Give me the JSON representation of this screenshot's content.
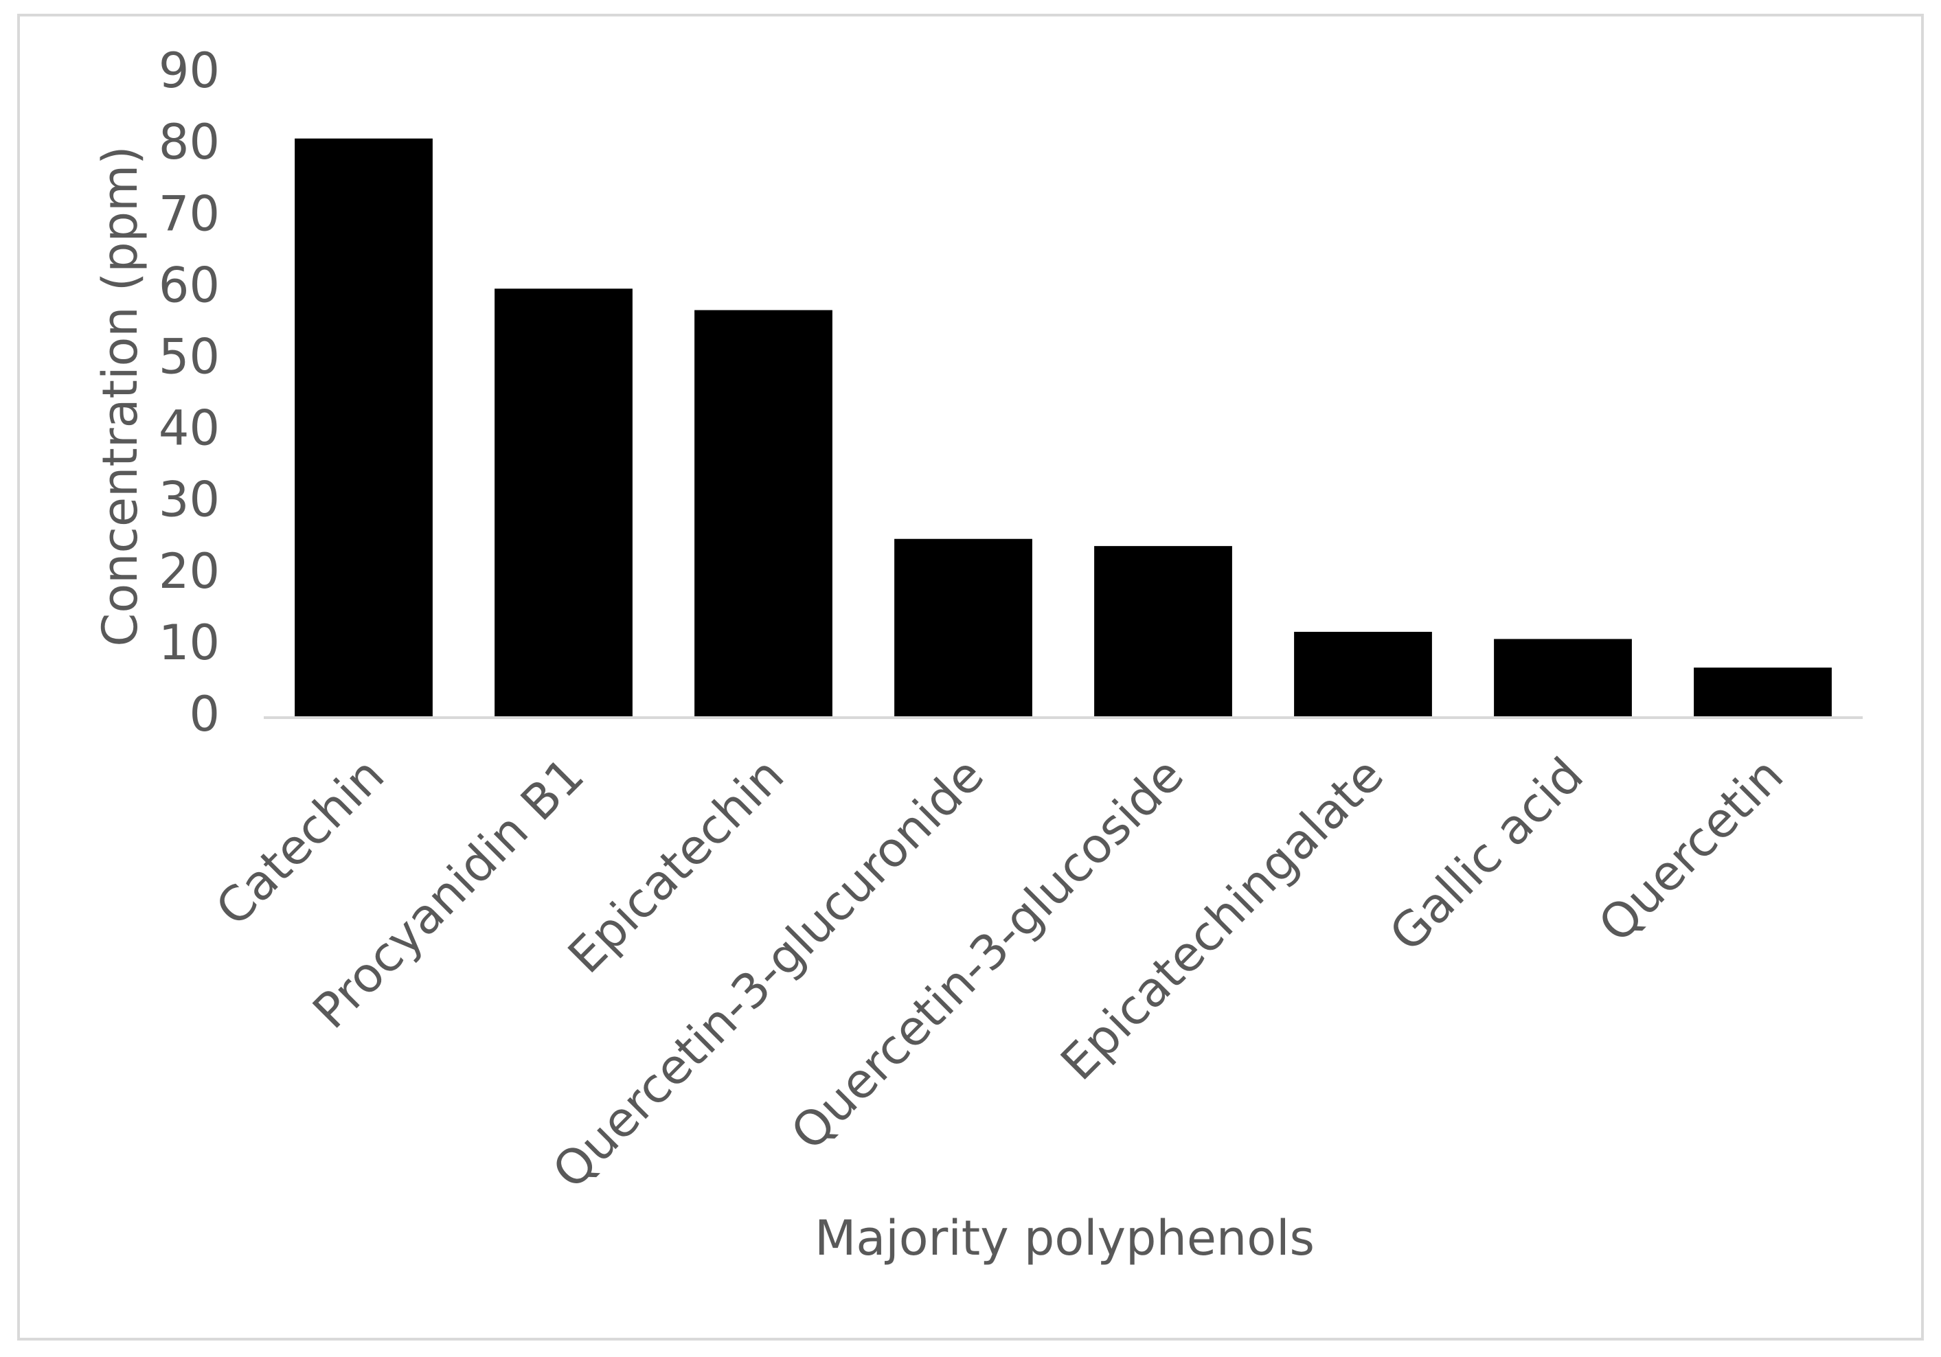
{
  "chart_data": {
    "type": "bar",
    "x_label": "Majority polyphenols",
    "y_label": "Concentration (ppm)",
    "categories": [
      "Catechin",
      "Procyanidin B1",
      "Epicatechin",
      "Quercetin-3-glucuronide",
      "Quercetin-3-glucoside",
      "Epicatechingalate",
      "Gallic acid",
      "Quercetin"
    ],
    "values": [
      81,
      60,
      57,
      25,
      24,
      12,
      11,
      7
    ],
    "color": "#000000",
    "ylim": [
      0,
      90
    ],
    "yticks": [
      0,
      10,
      20,
      30,
      40,
      50,
      60,
      70,
      80,
      90
    ],
    "grid": false
  }
}
